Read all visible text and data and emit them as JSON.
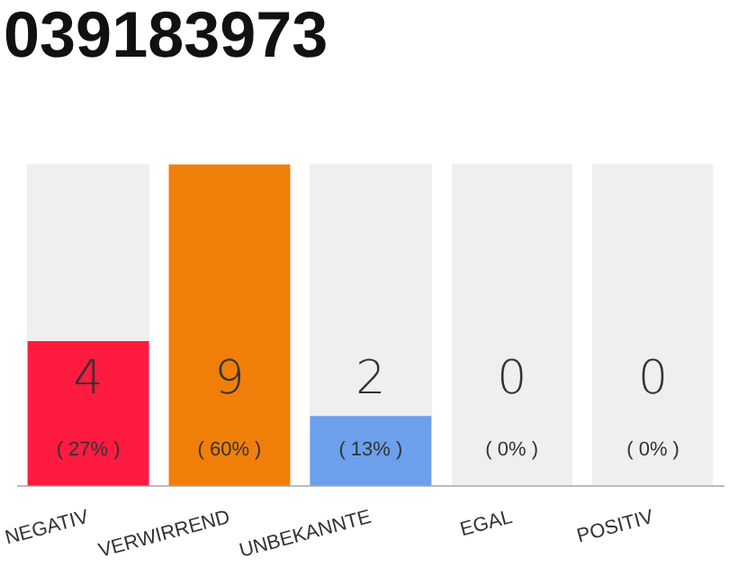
{
  "chart_data": {
    "type": "bar",
    "title": "039183973",
    "categories": [
      "NEGATIV",
      "VERWIRREND",
      "UNBEKANNTE",
      "EGAL",
      "POSITIV"
    ],
    "values": [
      27,
      60,
      13,
      0,
      0
    ],
    "colors": [
      "#ff1a40",
      "#f07f0a",
      "#6ca0ec",
      "#ff1a40",
      "#ff1a40"
    ],
    "value_labels": [
      "( 27% )",
      "( 60% )",
      "( 13% )",
      "( 0% )",
      "( 0% )"
    ],
    "annotations": [
      "4",
      "9",
      "2",
      "0",
      "0"
    ],
    "grid": false,
    "legend": false
  }
}
